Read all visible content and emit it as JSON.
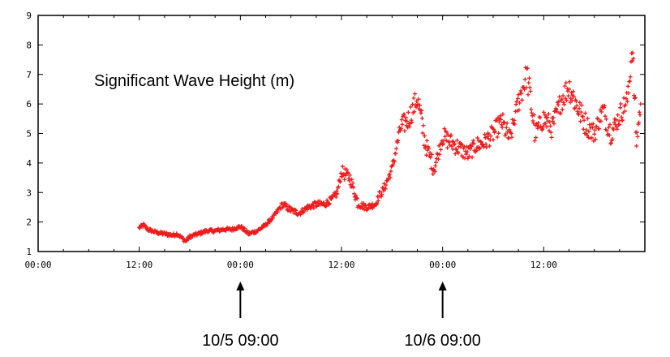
{
  "chart_data": {
    "type": "scatter",
    "title": "Significant Wave Height (m)",
    "xlabel": "",
    "ylabel": "",
    "xlim": [
      0,
      72
    ],
    "ylim": [
      1,
      9
    ],
    "x_tick_labels": [
      "00:00",
      "12:00",
      "00:00",
      "12:00",
      "00:00",
      "12:00"
    ],
    "y_tick_labels": [
      "1",
      "2",
      "3",
      "4",
      "5",
      "6",
      "7",
      "8",
      "9"
    ],
    "grid": false,
    "legend": "none",
    "marker": "+",
    "color": "#ee1c1c",
    "series": [
      {
        "x_hours": [
          12.0,
          12.5,
          13.0,
          14.0,
          15.0,
          16.0,
          16.5,
          17.5,
          18.0,
          19.0,
          20.0,
          21.0,
          22.0,
          23.0,
          24.0,
          25.0,
          26.0,
          27.0,
          28.0,
          28.5,
          29.0,
          30.0,
          31.0,
          32.0,
          33.0,
          34.0,
          35.0,
          35.5,
          36.0,
          37.0,
          38.0,
          39.0,
          40.0,
          40.5,
          41.0,
          42.0,
          43.0,
          44.0,
          45.0,
          46.0,
          47.0,
          48.0,
          49.0,
          50.0,
          51.0,
          52.0,
          53.0,
          54.0,
          55.0,
          56.0,
          57.0,
          58.0,
          59.0,
          60.0,
          61.0,
          62.0,
          63.0,
          64.0,
          65.0,
          66.0,
          67.0,
          68.0,
          69.0,
          70.0,
          70.5,
          71.0,
          71.5
        ],
        "y": [
          1.8,
          1.9,
          1.75,
          1.65,
          1.6,
          1.55,
          1.6,
          1.35,
          1.5,
          1.6,
          1.7,
          1.7,
          1.75,
          1.75,
          1.85,
          1.6,
          1.7,
          1.9,
          2.2,
          2.4,
          2.6,
          2.4,
          2.3,
          2.5,
          2.6,
          2.6,
          2.8,
          3.0,
          3.7,
          3.5,
          2.6,
          2.5,
          2.6,
          2.9,
          3.1,
          3.8,
          5.2,
          5.5,
          6.2,
          4.6,
          3.8,
          4.9,
          4.7,
          4.5,
          4.3,
          4.6,
          4.7,
          5.0,
          5.4,
          4.8,
          6.1,
          7.0,
          5.0,
          5.5,
          5.2,
          6.1,
          6.6,
          5.9,
          5.3,
          5.0,
          5.8,
          5.0,
          5.6,
          6.2,
          8.0,
          4.7,
          6.0
        ]
      }
    ],
    "annotations": [
      {
        "label": "10/5  09:00",
        "at": "00:00"
      },
      {
        "label": "10/6  09:00",
        "at": "00:00"
      }
    ]
  }
}
